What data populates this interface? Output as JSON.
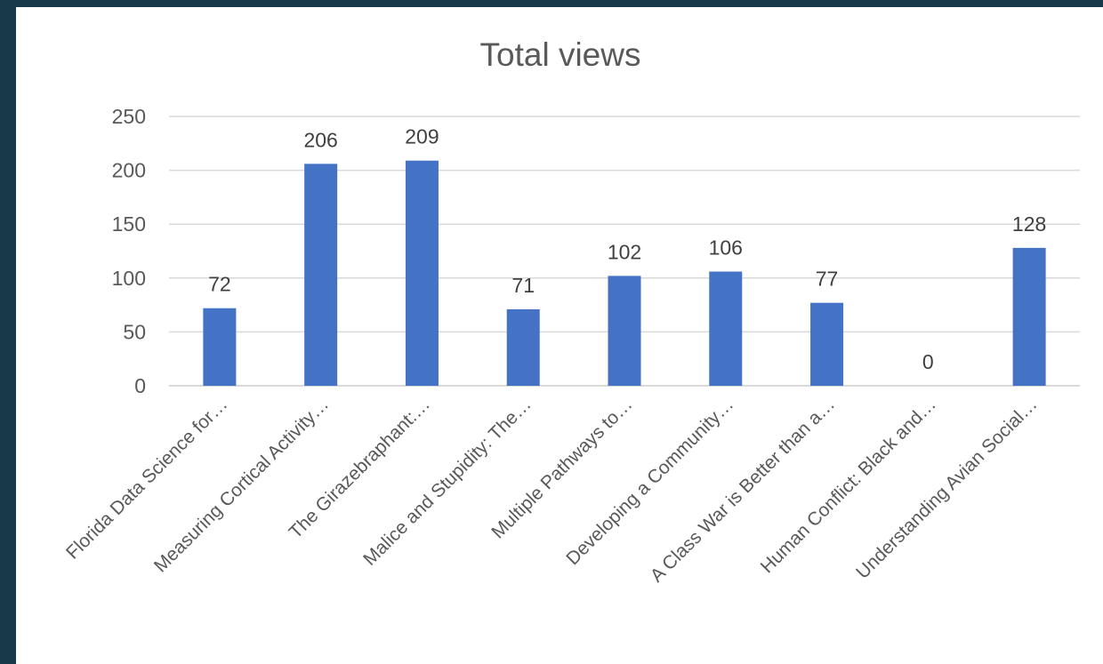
{
  "chart_data": {
    "type": "bar",
    "title": "Total views",
    "xlabel": "",
    "ylabel": "",
    "ylim": [
      0,
      250
    ],
    "yticks": [
      0,
      50,
      100,
      150,
      200,
      250
    ],
    "categories": [
      "Florida Data Science for…",
      "Measuring Cortical Activity…",
      "The Girazebraphant:…",
      "Malice and Stupidity: The…",
      "Multiple Pathways to…",
      "Developing a Community…",
      "A Class War is Better than a…",
      "Human Conflict: Black and…",
      "Understanding Avian Social…"
    ],
    "values": [
      72,
      206,
      209,
      71,
      102,
      106,
      77,
      0,
      128
    ],
    "grid": true,
    "legend": "none",
    "colors": {
      "bar": "#4472c4",
      "grid": "#d9d9d9",
      "text": "#595959",
      "frame": "#17394a"
    }
  }
}
